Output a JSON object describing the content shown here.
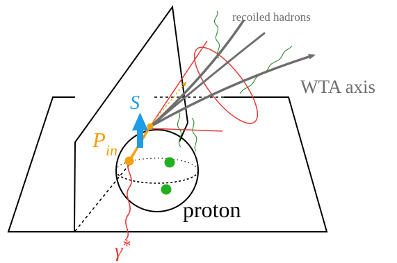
{
  "labels": {
    "recoiled_hadrons": "recoiled hadrons",
    "wta_axis": "WTA axis",
    "spin": "S",
    "p_main": "P",
    "p_sub": "in",
    "proton": "proton",
    "photon_main": "γ",
    "photon_sup": "*"
  },
  "colors": {
    "outline": "#000000",
    "jet_axis": "#6e6e6e",
    "cone": "#e53935",
    "photon": "#e53935",
    "spin_arrow": "#1e9be6",
    "parton": "#f2a007",
    "hadron_wiggle": "#2a8a2a",
    "quark": "#22b01e",
    "label_gray": "#6e6e6e"
  }
}
